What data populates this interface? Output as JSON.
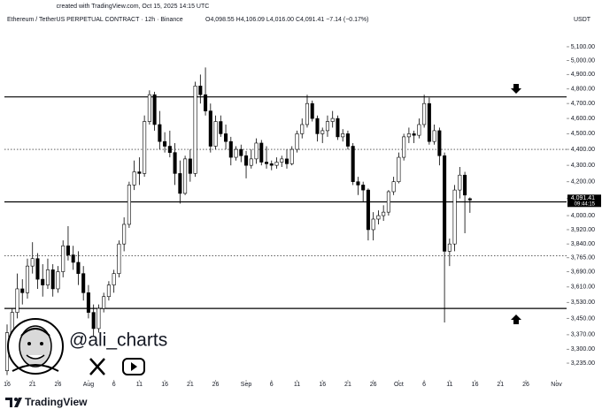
{
  "header": {
    "watermark": "created with TradingView.com, Oct 15, 2025 14:15 UTC",
    "symbol": "Ethereum / TetherUS PERPETUAL CONTRACT · 12h · Binance",
    "ohlc": "O4,098.55 H4,106.09 L4,016.00 C4,091.41 −7.14 (−0.17%)",
    "currency": "USDT"
  },
  "chart_data": {
    "type": "candlestick",
    "log_scale": true,
    "up_color": "#ffffff",
    "down_color": "#000000",
    "wick_color": "#000000",
    "x": [
      "07-16",
      "07-17",
      "07-18",
      "07-19",
      "07-20",
      "07-21",
      "07-22",
      "07-23",
      "07-24",
      "07-25",
      "07-26",
      "07-27",
      "07-28",
      "07-29",
      "07-30",
      "07-31",
      "08-01",
      "08-02",
      "08-03",
      "08-04",
      "08-05",
      "08-06",
      "08-07",
      "08-08",
      "08-09",
      "08-10",
      "08-11",
      "08-12",
      "08-13",
      "08-14",
      "08-15",
      "08-16",
      "08-17",
      "08-18",
      "08-19",
      "08-20",
      "08-21",
      "08-22",
      "08-23",
      "08-24",
      "08-25",
      "08-26",
      "08-27",
      "08-28",
      "08-29",
      "08-30",
      "08-31",
      "09-01",
      "09-02",
      "09-03",
      "09-04",
      "09-05",
      "09-06",
      "09-07",
      "09-08",
      "09-09",
      "09-10",
      "09-11",
      "09-12",
      "09-13",
      "09-14",
      "09-15",
      "09-16",
      "09-17",
      "09-18",
      "09-19",
      "09-20",
      "09-21",
      "09-22",
      "09-23",
      "09-24",
      "09-25",
      "09-26",
      "09-27",
      "09-28",
      "09-29",
      "09-30",
      "10-01",
      "10-02",
      "10-03",
      "10-04",
      "10-05",
      "10-06",
      "10-07",
      "10-08",
      "10-09",
      "10-10",
      "10-11",
      "10-12",
      "10-13",
      "10-14",
      "10-15"
    ],
    "open": [
      3200,
      3380,
      3480,
      3600,
      3580,
      3720,
      3760,
      3650,
      3620,
      3700,
      3600,
      3690,
      3830,
      3780,
      3740,
      3680,
      3580,
      3480,
      3400,
      3500,
      3560,
      3620,
      3680,
      3840,
      3950,
      4180,
      4260,
      4250,
      4580,
      4760,
      4560,
      4450,
      4420,
      4380,
      4250,
      4130,
      4340,
      4250,
      4820,
      4760,
      4650,
      4420,
      4580,
      4500,
      4450,
      4350,
      4400,
      4360,
      4300,
      4340,
      4440,
      4320,
      4310,
      4300,
      4320,
      4340,
      4310,
      4400,
      4500,
      4560,
      4700,
      4600,
      4500,
      4520,
      4580,
      4600,
      4480,
      4500,
      4420,
      4200,
      4180,
      4150,
      3920,
      3980,
      4000,
      4020,
      4140,
      4200,
      4350,
      4480,
      4500,
      4490,
      4560,
      4700,
      4450,
      4520,
      4360,
      3800,
      3840,
      4150,
      4240,
      4098.55
    ],
    "high": [
      3420,
      3500,
      3680,
      3650,
      3760,
      3850,
      3790,
      3730,
      3760,
      3730,
      3720,
      3860,
      3940,
      3830,
      3800,
      3720,
      3620,
      3520,
      3520,
      3580,
      3640,
      3700,
      3860,
      3990,
      4200,
      4330,
      4350,
      4620,
      4790,
      4780,
      4650,
      4510,
      4520,
      4440,
      4330,
      4360,
      4400,
      4850,
      4900,
      4950,
      4700,
      4620,
      4620,
      4560,
      4480,
      4420,
      4430,
      4390,
      4400,
      4470,
      4460,
      4420,
      4330,
      4350,
      4360,
      4400,
      4420,
      4520,
      4600,
      4760,
      4720,
      4620,
      4540,
      4620,
      4650,
      4620,
      4530,
      4520,
      4440,
      4230,
      4200,
      4160,
      4020,
      4030,
      4060,
      4150,
      4230,
      4380,
      4500,
      4540,
      4520,
      4600,
      4760,
      4740,
      4560,
      4540,
      4380,
      3870,
      4180,
      4290,
      4260,
      4106.09
    ],
    "low": [
      3180,
      3350,
      3450,
      3520,
      3550,
      3680,
      3600,
      3560,
      3600,
      3560,
      3580,
      3660,
      3750,
      3700,
      3620,
      3540,
      3450,
      3360,
      3380,
      3480,
      3540,
      3580,
      3660,
      3800,
      3930,
      4150,
      4180,
      4230,
      4560,
      4520,
      4400,
      4380,
      4350,
      4180,
      4070,
      4120,
      4200,
      4230,
      4700,
      4620,
      4380,
      4400,
      4480,
      4400,
      4300,
      4330,
      4320,
      4220,
      4280,
      4310,
      4300,
      4280,
      4270,
      4280,
      4290,
      4280,
      4300,
      4380,
      4470,
      4540,
      4580,
      4450,
      4440,
      4480,
      4540,
      4460,
      4450,
      4400,
      4180,
      4120,
      4080,
      3860,
      3860,
      3950,
      3970,
      4000,
      4120,
      4190,
      4330,
      4440,
      4440,
      4470,
      4540,
      4430,
      4430,
      4300,
      3430,
      3720,
      3800,
      4100,
      3900,
      4016
    ],
    "close": [
      3380,
      3480,
      3600,
      3580,
      3720,
      3760,
      3650,
      3620,
      3700,
      3600,
      3690,
      3830,
      3780,
      3740,
      3680,
      3580,
      3480,
      3400,
      3500,
      3560,
      3620,
      3680,
      3840,
      3950,
      4180,
      4260,
      4250,
      4580,
      4760,
      4560,
      4450,
      4420,
      4380,
      4250,
      4130,
      4340,
      4250,
      4820,
      4760,
      4650,
      4420,
      4580,
      4500,
      4450,
      4350,
      4400,
      4360,
      4300,
      4340,
      4440,
      4320,
      4310,
      4300,
      4320,
      4340,
      4310,
      4400,
      4500,
      4560,
      4700,
      4600,
      4500,
      4520,
      4580,
      4600,
      4480,
      4500,
      4420,
      4200,
      4180,
      4150,
      3920,
      3980,
      4000,
      4020,
      4140,
      4200,
      4350,
      4480,
      4500,
      4490,
      4560,
      4700,
      4450,
      4520,
      4360,
      3800,
      3840,
      4150,
      4240,
      4120,
      4091.41
    ],
    "xlim": [
      "07-16",
      "11-03"
    ],
    "xticks": [
      {
        "value": "07-16",
        "label": "16"
      },
      {
        "value": "07-21",
        "label": "21"
      },
      {
        "value": "07-26",
        "label": "26"
      },
      {
        "value": "08-01",
        "label": "Aug"
      },
      {
        "value": "08-06",
        "label": "6"
      },
      {
        "value": "08-11",
        "label": "11"
      },
      {
        "value": "08-16",
        "label": "16"
      },
      {
        "value": "08-21",
        "label": "21"
      },
      {
        "value": "08-26",
        "label": "26"
      },
      {
        "value": "09-01",
        "label": "Sep"
      },
      {
        "value": "09-06",
        "label": "6"
      },
      {
        "value": "09-11",
        "label": "11"
      },
      {
        "value": "09-16",
        "label": "16"
      },
      {
        "value": "09-21",
        "label": "21"
      },
      {
        "value": "09-26",
        "label": "26"
      },
      {
        "value": "10-01",
        "label": "Oct"
      },
      {
        "value": "10-06",
        "label": "6"
      },
      {
        "value": "10-11",
        "label": "11"
      },
      {
        "value": "10-16",
        "label": "16"
      },
      {
        "value": "10-21",
        "label": "21"
      },
      {
        "value": "10-26",
        "label": "26"
      },
      {
        "value": "11-01",
        "label": "Nov"
      }
    ],
    "ylim": [
      3158,
      5318
    ],
    "yticks": [
      {
        "value": 5100,
        "label": "5,100.00"
      },
      {
        "value": 5000,
        "label": "5,000.00"
      },
      {
        "value": 4900,
        "label": "4,900.00"
      },
      {
        "value": 4800,
        "label": "4,800.00"
      },
      {
        "value": 4700,
        "label": "4,700.00"
      },
      {
        "value": 4600,
        "label": "4,600.00"
      },
      {
        "value": 4500,
        "label": "4,500.00"
      },
      {
        "value": 4400,
        "label": "4,400.00"
      },
      {
        "value": 4300,
        "label": "4,300.00"
      },
      {
        "value": 4200,
        "label": "4,200.00"
      },
      {
        "value": 4100,
        "label": "4,100.00"
      },
      {
        "value": 4000,
        "label": "4,000.00"
      },
      {
        "value": 3920,
        "label": "3,920.00"
      },
      {
        "value": 3840,
        "label": "3,840.00"
      },
      {
        "value": 3765,
        "label": "3,765.00"
      },
      {
        "value": 3690,
        "label": "3,690.00"
      },
      {
        "value": 3610,
        "label": "3,610.00"
      },
      {
        "value": 3530,
        "label": "3,530.00"
      },
      {
        "value": 3450,
        "label": "3,450.00"
      },
      {
        "value": 3370,
        "label": "3,370.00"
      },
      {
        "value": 3300,
        "label": "3,300.00"
      },
      {
        "value": 3235,
        "label": "3,235.00"
      }
    ],
    "levels": [
      {
        "value": 4745,
        "style": "solid"
      },
      {
        "value": 4400,
        "style": "dotted"
      },
      {
        "value": 4080,
        "style": "solid"
      },
      {
        "value": 3775,
        "style": "dotted"
      },
      {
        "value": 3500,
        "style": "solid"
      }
    ],
    "price_tag": {
      "price": {
        "value": 4091.41,
        "label": "4,091.41"
      },
      "countdown": "09:44:15"
    }
  },
  "overlay": {
    "handle": "@ali_charts"
  },
  "footer": {
    "brand": "TradingView"
  }
}
